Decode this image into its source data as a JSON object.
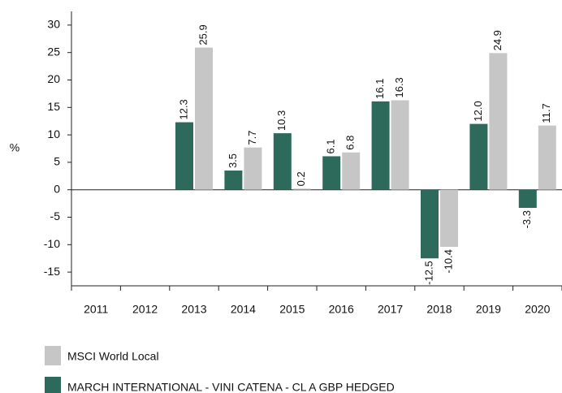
{
  "chart_data": {
    "type": "bar",
    "ylabel": "%",
    "categories": [
      "2011",
      "2012",
      "2013",
      "2014",
      "2015",
      "2016",
      "2017",
      "2018",
      "2019",
      "2020"
    ],
    "series": [
      {
        "name": "MARCH INTERNATIONAL - VINI CATENA - CL A GBP HEDGED",
        "color": "#2d6a5c",
        "values": [
          null,
          null,
          12.3,
          3.5,
          10.3,
          6.1,
          16.1,
          -12.5,
          12.0,
          -3.3
        ],
        "value_labels": [
          null,
          null,
          "12.3",
          "3.5",
          "10.3",
          "6.1",
          "16.1",
          "-12.5",
          "12.0",
          "-3.3"
        ]
      },
      {
        "name": "MSCI World Local",
        "color": "#c6c6c6",
        "values": [
          null,
          null,
          25.9,
          7.7,
          0.2,
          6.8,
          16.3,
          -10.4,
          24.9,
          11.7
        ],
        "value_labels": [
          null,
          null,
          "25.9",
          "7.7",
          "0.2",
          "6.8",
          "16.3",
          "-10.4",
          "24.9",
          "11.7"
        ]
      }
    ],
    "ylim": [
      -17.5,
      32.5
    ],
    "yticks": [
      -15,
      -10,
      -5,
      0,
      5,
      10,
      15,
      20,
      25,
      30
    ],
    "legend": "bottom-left"
  }
}
